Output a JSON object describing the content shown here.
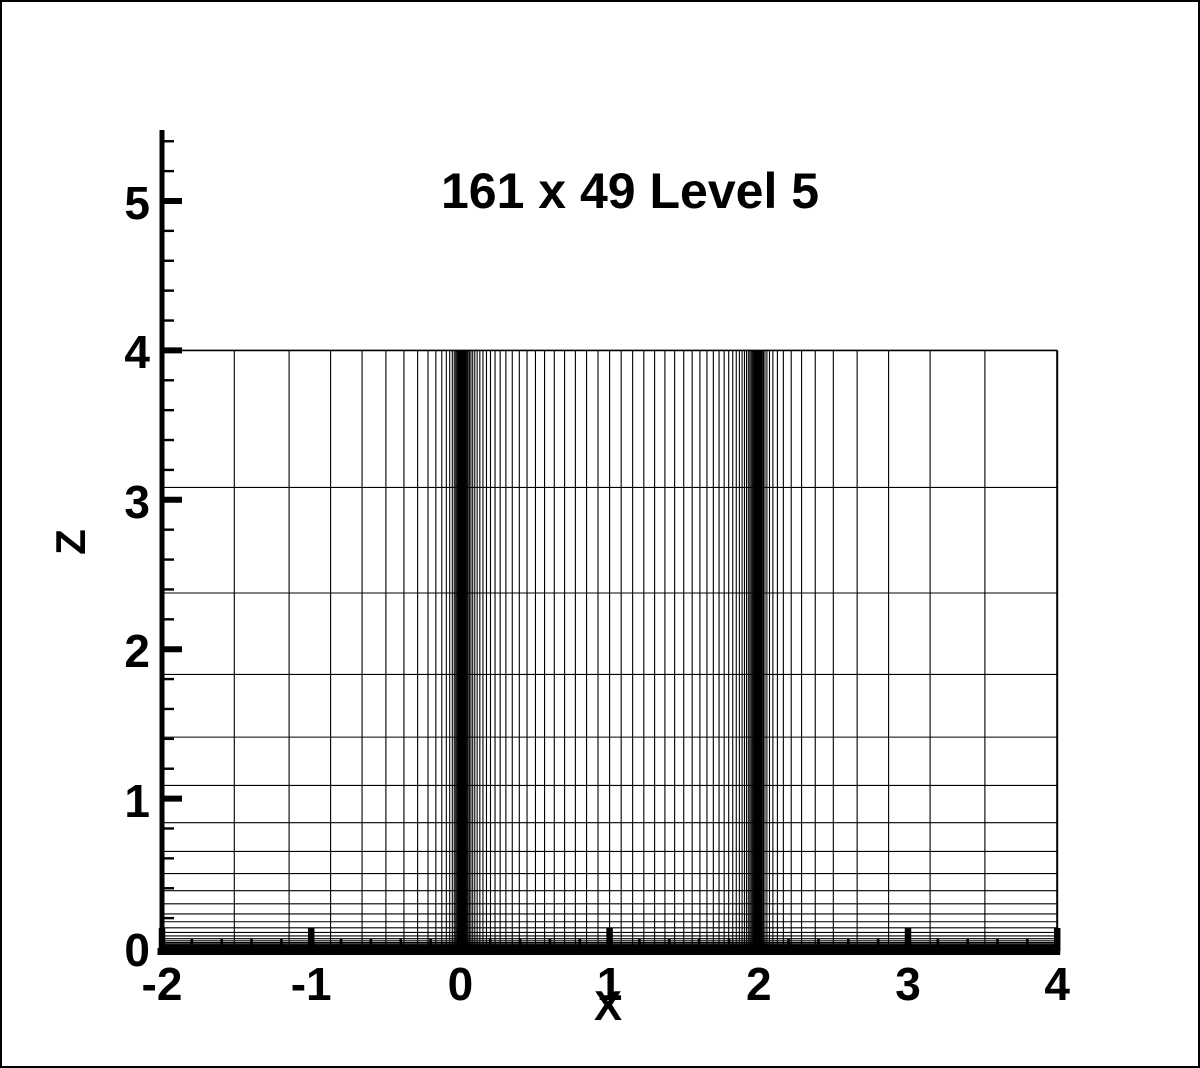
{
  "page": {
    "background": "#ffffff",
    "border_color": "#000000",
    "ink_color": "#000000"
  },
  "chart_data": {
    "type": "mesh",
    "title": "161 x 49 Level 5",
    "xlabel": "X",
    "ylabel": "Z",
    "grid_on": true,
    "legend": null,
    "x_axis": {
      "min": -2,
      "max": 4,
      "major_ticks": [
        -2,
        -1,
        0,
        1,
        2,
        3,
        4
      ],
      "tick_labels": [
        "-2",
        "-1",
        "0",
        "1",
        "2",
        "3",
        "4"
      ],
      "minor_tick_step": 0.2
    },
    "z_axis": {
      "min": 0,
      "max": 5.475,
      "major_ticks": [
        0,
        1,
        2,
        3,
        4,
        5
      ],
      "tick_labels": [
        "0",
        "1",
        "2",
        "3",
        "4",
        "5"
      ],
      "minor_tick_step": 0.2
    },
    "mesh": {
      "ni": 161,
      "nj": 49,
      "x_domain": [
        -2,
        4
      ],
      "z_domain": [
        0,
        4
      ],
      "x_blocks": [
        {
          "range": [
            -2,
            0
          ],
          "intervals": 40,
          "cluster": "end",
          "stretch": 11.1
        },
        {
          "range": [
            0,
            2
          ],
          "intervals": 80,
          "cluster": "both",
          "stretch": 6.2
        },
        {
          "range": [
            2,
            4
          ],
          "intervals": 40,
          "cluster": "start",
          "stretch": 11.1
        }
      ],
      "z_blocks": [
        {
          "range": [
            0,
            4
          ],
          "intervals": 48,
          "cluster": "start",
          "stretch": 12.5
        }
      ],
      "line_color": "#000000"
    }
  }
}
